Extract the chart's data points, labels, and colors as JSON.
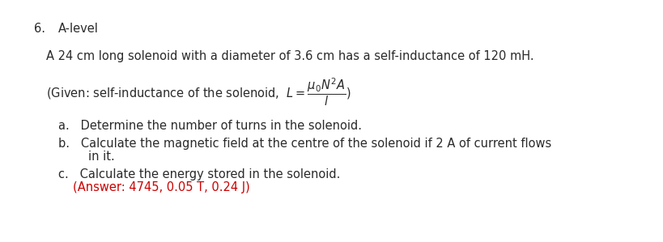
{
  "background_color": "#ffffff",
  "number": "6.",
  "heading": "A-level",
  "line1": "A 24 cm long solenoid with a diameter of 3.6 cm has a self-inductance of 120 mH.",
  "given_line": "(Given: self-inductance of the solenoid,  $L = \\dfrac{\\mu_0 N^2 A}{l}$)",
  "item_a": "a.   Determine the number of turns in the solenoid.",
  "item_b1": "b.   Calculate the magnetic field at the centre of the solenoid if 2 A of current flows",
  "item_b2": "        in it.",
  "item_c": "c.   Calculate the energy stored in the solenoid.",
  "answer": "(Answer: 4745, 0.05 T, 0.24 J)",
  "answer_color": "#cc0000",
  "text_color": "#2a2a2a",
  "font_size_body": 10.5
}
